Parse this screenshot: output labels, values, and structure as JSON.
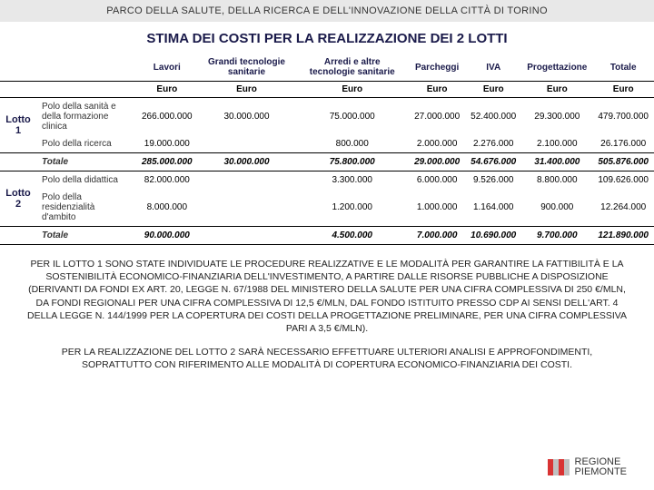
{
  "header": "PARCO DELLA SALUTE, DELLA RICERCA E DELL'INNOVAZIONE DELLA CITTÀ DI TORINO",
  "title": "STIMA DEI COSTI PER LA REALIZZAZIONE DEI 2 LOTTI",
  "table": {
    "columns": [
      "",
      "",
      "Lavori",
      "Grandi tecnologie sanitarie",
      "Arredi e altre tecnologie sanitarie",
      "Parcheggi",
      "IVA",
      "Progettazione",
      "Totale"
    ],
    "unit": "Euro",
    "lotti": [
      {
        "label": "Lotto 1",
        "rows": [
          {
            "name": "Polo della sanità e della formazione clinica",
            "values": [
              "266.000.000",
              "30.000.000",
              "75.000.000",
              "27.000.000",
              "52.400.000",
              "29.300.000",
              "479.700.000"
            ]
          },
          {
            "name": "Polo della ricerca",
            "values": [
              "19.000.000",
              "",
              "800.000",
              "2.000.000",
              "2.276.000",
              "2.100.000",
              "26.176.000"
            ]
          }
        ],
        "total": {
          "label": "Totale",
          "values": [
            "285.000.000",
            "30.000.000",
            "75.800.000",
            "29.000.000",
            "54.676.000",
            "31.400.000",
            "505.876.000"
          ]
        }
      },
      {
        "label": "Lotto 2",
        "rows": [
          {
            "name": "Polo della didattica",
            "values": [
              "82.000.000",
              "",
              "3.300.000",
              "6.000.000",
              "9.526.000",
              "8.800.000",
              "109.626.000"
            ]
          },
          {
            "name": "Polo della residenzialità d'ambito",
            "values": [
              "8.000.000",
              "",
              "1.200.000",
              "1.000.000",
              "1.164.000",
              "900.000",
              "12.264.000"
            ]
          }
        ],
        "total": {
          "label": "Totale",
          "values": [
            "90.000.000",
            "",
            "4.500.000",
            "7.000.000",
            "10.690.000",
            "9.700.000",
            "121.890.000"
          ]
        }
      }
    ]
  },
  "paragraph1": "PER IL LOTTO 1 SONO STATE INDIVIDUATE LE PROCEDURE REALIZZATIVE E LE MODALITÀ PER GARANTIRE LA FATTIBILITÀ E LA SOSTENIBILITÀ ECONOMICO-FINANZIARIA DELL'INVESTIMENTO, A PARTIRE DALLE RISORSE PUBBLICHE A DISPOSIZIONE (DERIVANTI DA FONDI EX ART. 20, LEGGE N. 67/1988 DEL MINISTERO DELLA SALUTE PER UNA CIFRA COMPLESSIVA DI 250 €/MLN, DA FONDI REGIONALI PER UNA CIFRA COMPLESSIVA DI 12,5 €/MLN, DAL FONDO ISTITUITO PRESSO CDP AI SENSI DELL'ART. 4 DELLA LEGGE N. 144/1999 PER LA COPERTURA DEI COSTI DELLA PROGETTAZIONE PRELIMINARE, PER UNA CIFRA COMPLESSIVA PARI A 3,5 €/MLN).",
  "paragraph2": "PER LA REALIZZAZIONE DEL LOTTO 2 SARÀ NECESSARIO EFFETTUARE ULTERIORI ANALISI E APPROFONDIMENTI, SOPRATTUTTO CON RIFERIMENTO ALLE MODALITÀ DI COPERTURA ECONOMICO-FINANZIARIA DEI COSTI.",
  "footer": {
    "org1": "REGIONE",
    "org2": "PIEMONTE",
    "flag_colors": [
      "#d93333",
      "#c0c0c0",
      "#d93333",
      "#c0c0c0"
    ]
  }
}
